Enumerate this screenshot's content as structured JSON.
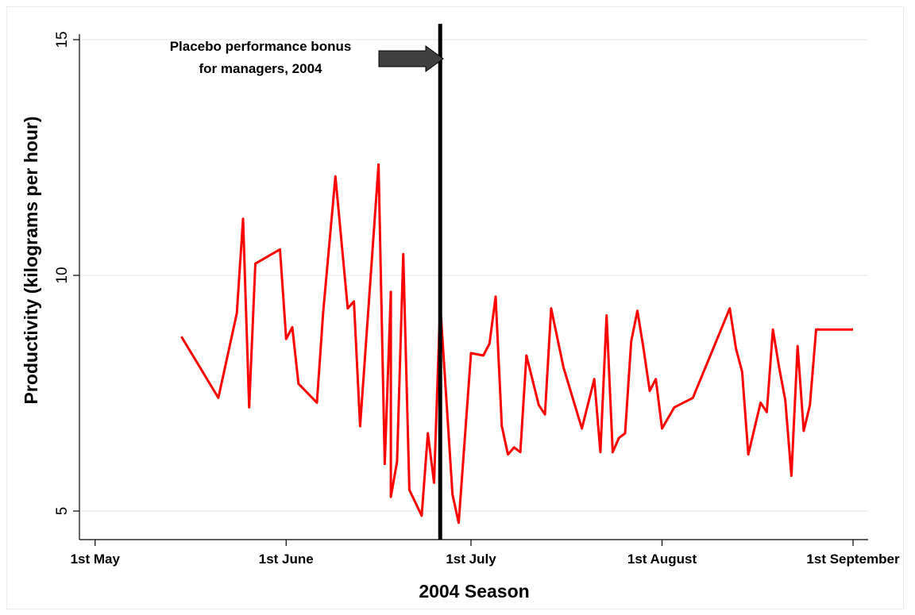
{
  "chart_data": {
    "type": "line",
    "title": "",
    "xlabel": "2004 Season",
    "ylabel": "Productivity (kilograms per hour)",
    "x_range": [
      "2004-04-30",
      "2004-09-01"
    ],
    "ylim": [
      4.8,
      15.5
    ],
    "yticks": [
      5,
      10,
      15
    ],
    "xticks": [
      {
        "date": "2004-05-01",
        "label": "1st May"
      },
      {
        "date": "2004-06-01",
        "label": "1st June"
      },
      {
        "date": "2004-07-01",
        "label": "1st July"
      },
      {
        "date": "2004-08-01",
        "label": "1st August"
      },
      {
        "date": "2004-09-01",
        "label": "1st September"
      }
    ],
    "grid": {
      "horizontal": true,
      "vertical": false
    },
    "colors": {
      "series": "#ff0000",
      "marker_line": "#000000",
      "arrow": "#404040",
      "grid": "#e3ecef"
    },
    "reference_line": {
      "date": "2004-06-26"
    },
    "annotation": {
      "lines": [
        "Placebo performance bonus",
        "for managers, 2004"
      ]
    },
    "series": [
      {
        "x": [
          "2004-05-15",
          "2004-05-21",
          "2004-05-24",
          "2004-05-25",
          "2004-05-26",
          "2004-05-27",
          "2004-05-31",
          "2004-06-01",
          "2004-06-02",
          "2004-06-03",
          "2004-06-06",
          "2004-06-07",
          "2004-06-09",
          "2004-06-11",
          "2004-06-12",
          "2004-06-13",
          "2004-06-16",
          "2004-06-17",
          "2004-06-18",
          "2004-06-18",
          "2004-06-19",
          "2004-06-20",
          "2004-06-21",
          "2004-06-23",
          "2004-06-24",
          "2004-06-25",
          "2004-06-26",
          "2004-06-28",
          "2004-06-29",
          "2004-07-01",
          "2004-07-03",
          "2004-07-04",
          "2004-07-05",
          "2004-07-06",
          "2004-07-07",
          "2004-07-08",
          "2004-07-09",
          "2004-07-10",
          "2004-07-12",
          "2004-07-13",
          "2004-07-14",
          "2004-07-16",
          "2004-07-19",
          "2004-07-21",
          "2004-07-22",
          "2004-07-23",
          "2004-07-24",
          "2004-07-25",
          "2004-07-26",
          "2004-07-27",
          "2004-07-28",
          "2004-07-29",
          "2004-07-30",
          "2004-07-31",
          "2004-08-01",
          "2004-08-03",
          "2004-08-06",
          "2004-08-12",
          "2004-08-13",
          "2004-08-14",
          "2004-08-15",
          "2004-08-17",
          "2004-08-18",
          "2004-08-19",
          "2004-08-20",
          "2004-08-21",
          "2004-08-22",
          "2004-08-23",
          "2004-08-24",
          "2004-08-25",
          "2004-08-26",
          "2004-08-27",
          "2004-08-28",
          "2004-08-29",
          "2004-08-30",
          "2004-08-31",
          "2004-09-01"
        ],
        "values": [
          8.7,
          7.4,
          9.2,
          11.2,
          7.2,
          10.25,
          10.55,
          8.65,
          8.9,
          7.7,
          7.3,
          9.2,
          12.1,
          9.3,
          9.45,
          6.8,
          12.35,
          6.0,
          9.65,
          5.3,
          6.05,
          10.45,
          5.45,
          4.9,
          6.65,
          5.6,
          9.4,
          5.35,
          4.75,
          8.35,
          8.3,
          8.55,
          9.55,
          6.8,
          6.2,
          6.35,
          6.25,
          8.3,
          7.25,
          7.05,
          9.3,
          8.05,
          6.75,
          7.8,
          6.25,
          9.15,
          6.25,
          6.55,
          6.65,
          8.6,
          9.25,
          8.45,
          7.55,
          7.8,
          6.75,
          7.2,
          7.4,
          9.3,
          8.45,
          7.95,
          6.2,
          7.3,
          7.1,
          8.85,
          8.05,
          7.35,
          5.75,
          8.5,
          6.7,
          7.25,
          8.85,
          8.85,
          8.85,
          8.85,
          8.85,
          8.85,
          8.85
        ]
      }
    ]
  }
}
